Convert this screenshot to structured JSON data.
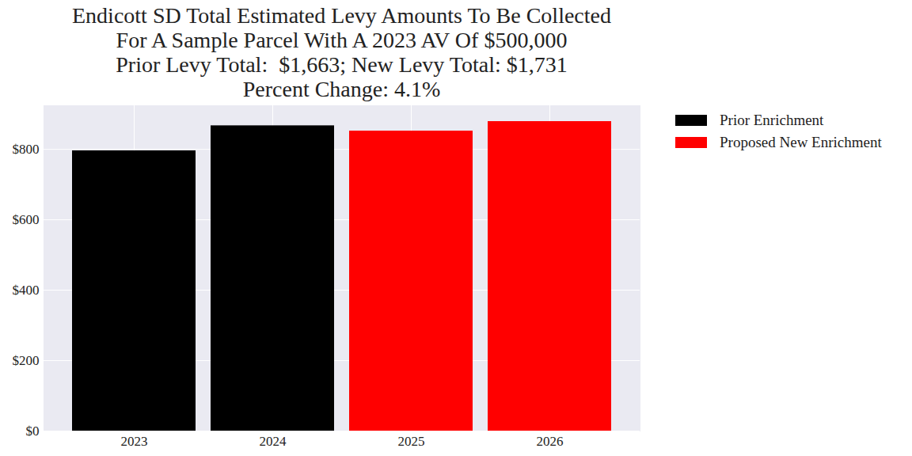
{
  "chart_data": {
    "type": "bar",
    "title": "Endicott SD Total Estimated Levy Amounts To Be Collected\nFor A Sample Parcel With A 2023 AV Of $500,000\nPrior Levy Total:  $1,663; New Levy Total: $1,731\nPercent Change: 4.1%",
    "categories": [
      "2023",
      "2024",
      "2025",
      "2026"
    ],
    "series": [
      {
        "name": "Prior Enrichment",
        "color": "#000000",
        "values": [
          796,
          867,
          null,
          null
        ]
      },
      {
        "name": "Proposed New Enrichment",
        "color": "#ff0000",
        "values": [
          null,
          null,
          852,
          879
        ]
      }
    ],
    "ylim": [
      0,
      924
    ],
    "yticks": [
      {
        "value": 0,
        "label": "$0"
      },
      {
        "value": 200,
        "label": "$200"
      },
      {
        "value": 400,
        "label": "$400"
      },
      {
        "value": 600,
        "label": "$600"
      },
      {
        "value": 800,
        "label": "$800"
      }
    ],
    "grid": true,
    "legend": "right"
  }
}
